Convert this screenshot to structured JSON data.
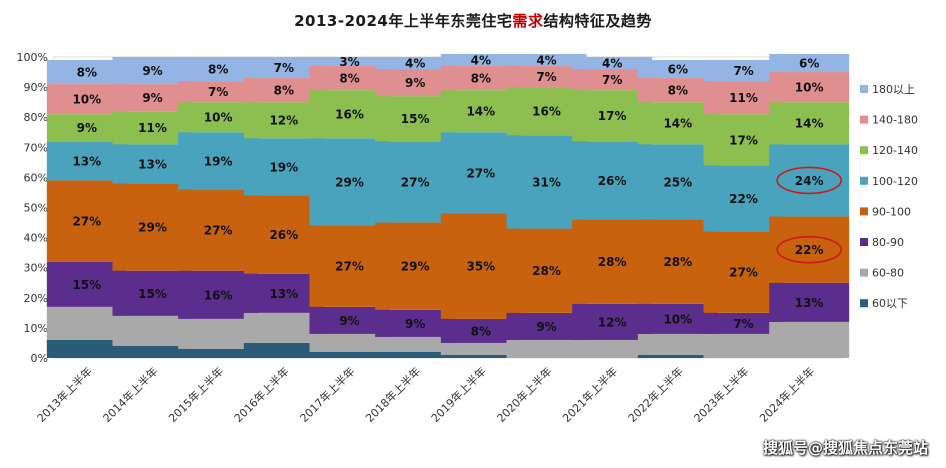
{
  "title": {
    "pre": "2013-2024年上半年东莞住宅",
    "highlight": "需求",
    "post": "结构特征及趋势"
  },
  "watermark": "搜狐号@搜狐焦点东莞站",
  "chart_data": {
    "type": "bar",
    "stacked": true,
    "percent": true,
    "categories": [
      "2013年上半年",
      "2014年上半年",
      "2015年上半年",
      "2016年上半年",
      "2017年上半年",
      "2018年上半年",
      "2019年上半年",
      "2020年上半年",
      "2021年上半年",
      "2022年上半年",
      "2023年上半年",
      "2024年上半年"
    ],
    "ylim": [
      0,
      100
    ],
    "yticks": [
      "0%",
      "10%",
      "20%",
      "30%",
      "40%",
      "50%",
      "60%",
      "70%",
      "80%",
      "90%",
      "100%"
    ],
    "legend_position": "right",
    "series": [
      {
        "name": "60以下",
        "color": "#2a5c78",
        "values": [
          6,
          4,
          3,
          5,
          2,
          2,
          1,
          0,
          0,
          1,
          0,
          0
        ],
        "labels": [
          "",
          "",
          "",
          "",
          "",
          "",
          "",
          "",
          "",
          "",
          "",
          ""
        ]
      },
      {
        "name": "60-80",
        "color": "#a9a9a9",
        "values": [
          11,
          10,
          10,
          10,
          6,
          5,
          4,
          6,
          6,
          7,
          8,
          12
        ],
        "labels": [
          "",
          "",
          "",
          "",
          "",
          "",
          "",
          "",
          "",
          "",
          "",
          ""
        ]
      },
      {
        "name": "80-90",
        "color": "#5b2d8c",
        "values": [
          15,
          15,
          16,
          13,
          9,
          9,
          8,
          9,
          12,
          10,
          7,
          13
        ],
        "labels": [
          "15%",
          "15%",
          "16%",
          "13%",
          "9%",
          "9%",
          "8%",
          "9%",
          "12%",
          "10%",
          "7%",
          "13%"
        ]
      },
      {
        "name": "90-100",
        "color": "#c8620e",
        "values": [
          27,
          29,
          27,
          26,
          27,
          29,
          35,
          28,
          28,
          28,
          27,
          22
        ],
        "labels": [
          "27%",
          "29%",
          "27%",
          "26%",
          "27%",
          "29%",
          "35%",
          "28%",
          "28%",
          "28%",
          "27%",
          "22%"
        ]
      },
      {
        "name": "100-120",
        "color": "#4aa3bd",
        "values": [
          13,
          13,
          19,
          19,
          29,
          27,
          27,
          31,
          26,
          25,
          22,
          24
        ],
        "labels": [
          "13%",
          "13%",
          "19%",
          "19%",
          "29%",
          "27%",
          "27%",
          "31%",
          "26%",
          "25%",
          "22%",
          "24%"
        ]
      },
      {
        "name": "120-140",
        "color": "#8cbf4f",
        "values": [
          9,
          11,
          10,
          12,
          16,
          15,
          14,
          16,
          17,
          14,
          17,
          14
        ],
        "labels": [
          "9%",
          "11%",
          "10%",
          "12%",
          "16%",
          "15%",
          "14%",
          "16%",
          "17%",
          "14%",
          "17%",
          "14%"
        ]
      },
      {
        "name": "140-180",
        "color": "#e08f90",
        "values": [
          10,
          9,
          7,
          8,
          8,
          9,
          8,
          7,
          7,
          8,
          11,
          10
        ],
        "labels": [
          "10%",
          "9%",
          "7%",
          "8%",
          "8%",
          "9%",
          "8%",
          "7%",
          "7%",
          "8%",
          "11%",
          "10%"
        ]
      },
      {
        "name": "180以上",
        "color": "#94b5e3",
        "values": [
          8,
          9,
          8,
          7,
          3,
          4,
          4,
          4,
          4,
          6,
          7,
          6
        ],
        "labels": [
          "8%",
          "9%",
          "8%",
          "7%",
          "3%",
          "4%",
          "4%",
          "4%",
          "4%",
          "6%",
          "7%",
          "6%"
        ]
      }
    ],
    "highlight_circles": [
      {
        "category": "2024年上半年",
        "series": "100-120"
      },
      {
        "category": "2024年上半年",
        "series": "90-100"
      }
    ]
  }
}
